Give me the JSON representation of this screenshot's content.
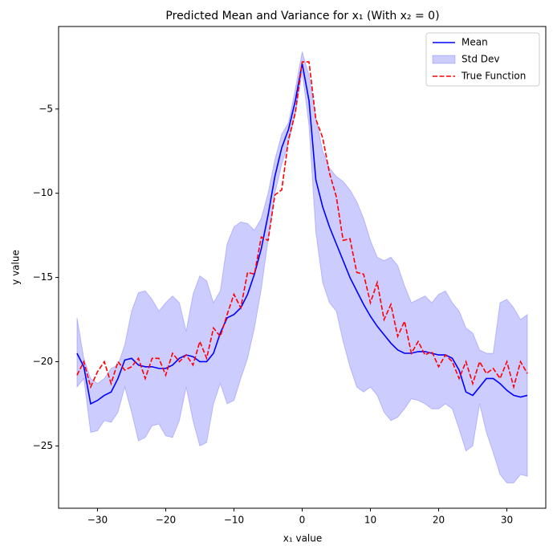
{
  "chart_data": {
    "type": "line",
    "title": "Predicted Mean and Variance for x₁ (With x₂ = 0)",
    "xlabel": "x₁ value",
    "ylabel": "y value",
    "x": [
      -33,
      -32,
      -31,
      -30,
      -29,
      -28,
      -27,
      -26,
      -25,
      -24,
      -23,
      -22,
      -21,
      -20,
      -19,
      -18,
      -17,
      -16,
      -15,
      -14,
      -13,
      -12,
      -11,
      -10,
      -9,
      -8,
      -7,
      -6,
      -5,
      -4,
      -3,
      -2,
      -1,
      0,
      1,
      2,
      3,
      4,
      5,
      6,
      7,
      8,
      9,
      10,
      11,
      12,
      13,
      14,
      15,
      16,
      17,
      18,
      19,
      20,
      21,
      22,
      23,
      24,
      25,
      26,
      27,
      28,
      29,
      30,
      31,
      32,
      33
    ],
    "series": [
      {
        "name": "Mean",
        "color": "#0000ff",
        "linestyle": "solid",
        "values": [
          -19.5,
          -20.3,
          -22.5,
          -22.3,
          -22.0,
          -21.8,
          -21.0,
          -19.9,
          -19.8,
          -20.2,
          -20.3,
          -20.3,
          -20.4,
          -20.4,
          -20.2,
          -19.8,
          -19.6,
          -19.7,
          -20.0,
          -20.0,
          -19.5,
          -18.3,
          -17.4,
          -17.2,
          -16.8,
          -16.0,
          -14.8,
          -13.3,
          -11.3,
          -9.0,
          -7.3,
          -6.2,
          -4.5,
          -2.3,
          -4.5,
          -9.2,
          -10.8,
          -12.0,
          -13.0,
          -14.0,
          -15.0,
          -15.8,
          -16.6,
          -17.3,
          -17.9,
          -18.4,
          -18.9,
          -19.3,
          -19.5,
          -19.5,
          -19.4,
          -19.4,
          -19.5,
          -19.6,
          -19.6,
          -19.8,
          -20.5,
          -21.8,
          -22.0,
          -21.5,
          -21.0,
          -21.0,
          -21.3,
          -21.7,
          -22.0,
          -22.1,
          -22.0
        ]
      },
      {
        "name": "Std Dev",
        "color": "#0000ff",
        "alpha": 0.2,
        "type": "band",
        "upper": [
          -17.4,
          -19.8,
          -21.0,
          -21.3,
          -21.0,
          -20.4,
          -20.2,
          -19.0,
          -17.0,
          -15.9,
          -15.8,
          -16.3,
          -17.0,
          -16.5,
          -16.1,
          -16.5,
          -18.2,
          -16.0,
          -14.9,
          -15.2,
          -16.5,
          -15.8,
          -13.0,
          -12.0,
          -11.7,
          -11.8,
          -12.2,
          -11.5,
          -10.0,
          -8.0,
          -6.5,
          -5.8,
          -3.8,
          -1.6,
          -3.0,
          -5.5,
          -7.5,
          -8.5,
          -9.0,
          -9.3,
          -9.8,
          -10.5,
          -11.5,
          -12.8,
          -13.8,
          -14.0,
          -13.8,
          -14.3,
          -15.5,
          -16.5,
          -16.3,
          -16.1,
          -16.5,
          -16.0,
          -15.8,
          -16.5,
          -17.0,
          -18.0,
          -18.3,
          -19.3,
          -19.5,
          -19.5,
          -16.5,
          -16.3,
          -16.8,
          -17.5,
          -17.2
        ],
        "lower": [
          -21.5,
          -21.0,
          -24.2,
          -24.1,
          -23.5,
          -23.6,
          -23.0,
          -21.5,
          -23.0,
          -24.7,
          -24.5,
          -23.8,
          -23.7,
          -24.4,
          -24.5,
          -23.5,
          -21.5,
          -23.5,
          -25.0,
          -24.8,
          -22.5,
          -21.3,
          -22.5,
          -22.3,
          -21.0,
          -19.8,
          -18.0,
          -15.7,
          -12.8,
          -10.0,
          -8.3,
          -7.0,
          -5.3,
          -2.8,
          -6.0,
          -12.3,
          -15.3,
          -16.5,
          -17.0,
          -18.8,
          -20.3,
          -21.5,
          -21.8,
          -21.5,
          -22.0,
          -23.0,
          -23.5,
          -23.3,
          -22.8,
          -22.2,
          -22.3,
          -22.5,
          -22.8,
          -22.8,
          -22.5,
          -22.8,
          -24.0,
          -25.3,
          -25.0,
          -22.5,
          -24.2,
          -25.4,
          -26.7,
          -27.2,
          -27.2,
          -26.7,
          -26.8
        ]
      },
      {
        "name": "True Function",
        "color": "#ff0000",
        "linestyle": "dashed",
        "values": [
          -20.8,
          -20.0,
          -21.5,
          -20.6,
          -20.0,
          -21.3,
          -20.0,
          -20.5,
          -20.3,
          -19.8,
          -21.0,
          -19.8,
          -19.8,
          -20.8,
          -19.5,
          -20.0,
          -19.6,
          -20.2,
          -18.8,
          -19.8,
          -18.0,
          -18.5,
          -17.2,
          -16.0,
          -16.8,
          -14.7,
          -14.8,
          -12.6,
          -12.8,
          -10.1,
          -9.8,
          -6.8,
          -5.2,
          -2.2,
          -2.2,
          -5.6,
          -6.7,
          -8.8,
          -10.2,
          -12.8,
          -12.7,
          -14.7,
          -14.8,
          -16.5,
          -15.3,
          -17.5,
          -16.6,
          -18.5,
          -17.6,
          -19.5,
          -18.8,
          -19.6,
          -19.4,
          -20.3,
          -19.6,
          -20.0,
          -21.0,
          -20.0,
          -21.3,
          -20.0,
          -20.7,
          -20.4,
          -21.0,
          -20.0,
          -21.5,
          -20.0,
          -20.7
        ]
      }
    ],
    "xlim": [
      -35.7,
      35.7
    ],
    "ylim": [
      -28.7,
      -0.1
    ],
    "xticks": [
      {
        "value": -30,
        "label": "−30"
      },
      {
        "value": -20,
        "label": "−20"
      },
      {
        "value": -10,
        "label": "−10"
      },
      0,
      10,
      20,
      30
    ],
    "yticks": [
      {
        "value": -25,
        "label": "−25"
      },
      {
        "value": -20,
        "label": "−20"
      },
      {
        "value": -15,
        "label": "−15"
      },
      {
        "value": -10,
        "label": "−10"
      },
      {
        "value": -5,
        "label": "−5"
      }
    ],
    "grid": false,
    "legend": "upper right"
  }
}
